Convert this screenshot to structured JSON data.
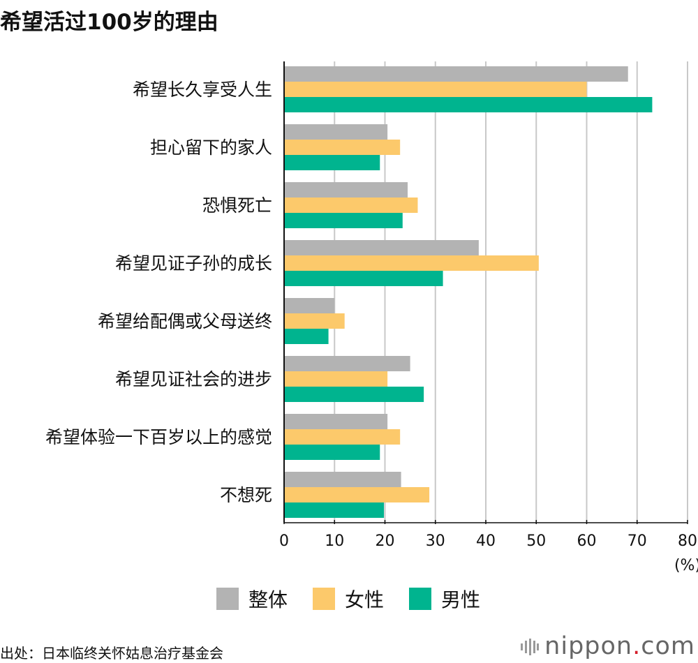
{
  "chart_data": {
    "type": "bar",
    "orientation": "horizontal",
    "title": "希望活过100岁的理由",
    "categories": [
      "希望长久享受人生",
      "担心留下的家人",
      "恐惧死亡",
      "希望见证子孙的成长",
      "希望给配偶或父母送终",
      "希望见证社会的进步",
      "希望体验一下百岁以上的感觉",
      "不想死"
    ],
    "series": [
      {
        "name": "整体",
        "color": "#b3b3b3",
        "values": [
          68.2,
          20.5,
          24.5,
          38.6,
          10.0,
          25.0,
          20.5,
          23.2
        ]
      },
      {
        "name": "女性",
        "color": "#fcc96b",
        "values": [
          60.0,
          23.0,
          26.5,
          50.5,
          12.0,
          20.5,
          23.0,
          28.8
        ]
      },
      {
        "name": "男性",
        "color": "#00b48f",
        "values": [
          73.0,
          19.0,
          23.5,
          31.5,
          8.8,
          27.7,
          19.0,
          19.8
        ]
      }
    ],
    "xlim": [
      0,
      80
    ],
    "xticks": [
      "0",
      "10",
      "20",
      "30",
      "40",
      "50",
      "60",
      "70",
      "80"
    ],
    "unit": "(%)",
    "grid": "vertical",
    "legend_position": "bottom"
  },
  "source": "出处：日本临终关怀姑息治疗基金会",
  "logo": {
    "text_main": "nippon",
    "text_dot": ".",
    "text_tail": "com"
  }
}
